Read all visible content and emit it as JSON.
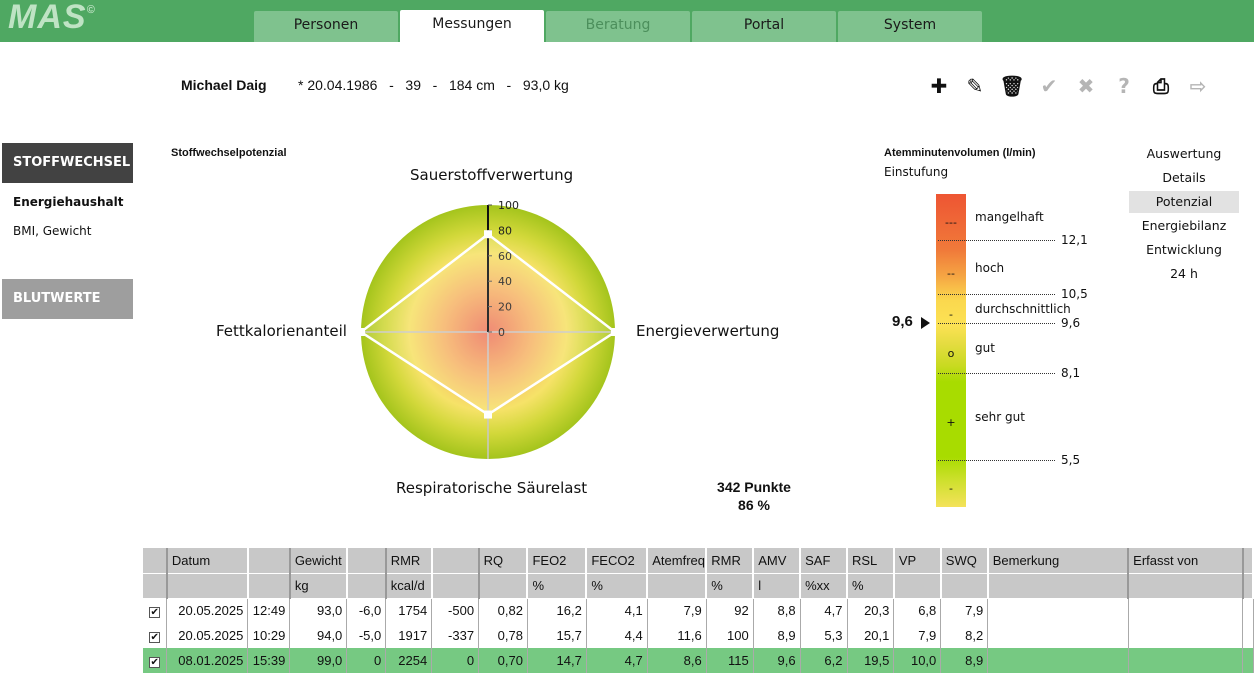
{
  "app": {
    "logo": "MAS"
  },
  "tabs": [
    {
      "label": "Personen",
      "state": "normal"
    },
    {
      "label": "Messungen",
      "state": "active"
    },
    {
      "label": "Beratung",
      "state": "disabled"
    },
    {
      "label": "Portal",
      "state": "normal"
    },
    {
      "label": "System",
      "state": "normal"
    }
  ],
  "person": {
    "name": "Michael Daig",
    "info": "* 20.04.1986   -   39   -   184 cm   -   93,0 kg"
  },
  "toolbar": [
    {
      "icon": "plus-icon",
      "glyph": "✚",
      "enabled": true
    },
    {
      "icon": "pencil-icon",
      "glyph": "✎",
      "enabled": true
    },
    {
      "icon": "trash-icon",
      "glyph": "🗑",
      "enabled": true
    },
    {
      "icon": "check-icon",
      "glyph": "✔",
      "enabled": false
    },
    {
      "icon": "close-icon",
      "glyph": "✖",
      "enabled": false
    },
    {
      "icon": "help-icon",
      "glyph": "?",
      "enabled": false
    },
    {
      "icon": "print-icon",
      "glyph": "⎙",
      "enabled": true
    },
    {
      "icon": "export-icon",
      "glyph": "⇨",
      "enabled": false
    }
  ],
  "sidebar": {
    "section1": "STOFFWECHSEL",
    "items": [
      "Energiehaushalt",
      "BMI, Gewicht"
    ],
    "section2": "BLUTWERTE"
  },
  "sublinks": [
    {
      "label": "Auswertung"
    },
    {
      "label": "Details"
    },
    {
      "label": "Potenzial",
      "active": true
    },
    {
      "label": "Energiebilanz"
    },
    {
      "label": "Entwicklung"
    },
    {
      "label": "24 h"
    }
  ],
  "radar": {
    "title": "Stoffwechselpotenzial",
    "axes": [
      "Sauerstoffverwertung",
      "Energieverwertung",
      "Respiratorische Säurelast",
      "Fettkalorienanteil"
    ],
    "values": [
      77,
      100,
      65,
      100
    ],
    "ticks": [
      "0",
      "20",
      "40",
      "60",
      "80",
      "100"
    ],
    "range": [
      0,
      100
    ],
    "score": "342 Punkte",
    "percent": "86 %"
  },
  "gauge": {
    "title": "Atemminutenvolumen (l/min)",
    "subtitle": "Einstufung",
    "current": "9,6",
    "levels": [
      {
        "mark": "---",
        "label": "mangelhaft"
      },
      {
        "mark": "--",
        "label": "hoch"
      },
      {
        "mark": "-",
        "label": "durchschnittlich"
      },
      {
        "mark": "o",
        "label": "gut"
      },
      {
        "mark": "+",
        "label": "sehr gut"
      },
      {
        "mark": "-",
        "label": ""
      }
    ],
    "thresholds": [
      "12,1",
      "10,5",
      "9,6",
      "8,1",
      "5,5"
    ]
  },
  "table": {
    "headers": [
      "",
      "Datum",
      "",
      "Gewicht",
      "",
      "RMR",
      "",
      "RQ",
      "FEO2",
      "FECO2",
      "Atemfreq",
      "RMR",
      "AMV",
      "SAF",
      "RSL",
      "VP",
      "SWQ",
      "Bemerkung",
      "Erfasst von",
      ""
    ],
    "units": [
      "",
      "",
      "",
      "kg",
      "",
      "kcal/d",
      "",
      "",
      "%",
      "%",
      "",
      "%",
      "l",
      "%xx",
      "%",
      "",
      "",
      "",
      "",
      ""
    ],
    "rows": [
      {
        "checked": true,
        "selected": false,
        "cells": [
          "20.05.2025",
          "12:49",
          "93,0",
          "-6,0",
          "1754",
          "-500",
          "0,82",
          "16,2",
          "4,1",
          "7,9",
          "92",
          "8,8",
          "4,7",
          "20,3",
          "6,8",
          "7,9",
          "",
          "",
          ""
        ]
      },
      {
        "checked": true,
        "selected": false,
        "cells": [
          "20.05.2025",
          "10:29",
          "94,0",
          "-5,0",
          "1917",
          "-337",
          "0,78",
          "15,7",
          "4,4",
          "11,6",
          "100",
          "8,9",
          "5,3",
          "20,1",
          "7,9",
          "8,2",
          "",
          "",
          ""
        ]
      },
      {
        "checked": true,
        "selected": true,
        "cells": [
          "08.01.2025",
          "15:39",
          "99,0",
          "0",
          "2254",
          "0",
          "0,70",
          "14,7",
          "4,7",
          "8,6",
          "115",
          "9,6",
          "6,2",
          "19,5",
          "10,0",
          "8,9",
          "",
          "",
          ""
        ]
      }
    ]
  },
  "colors": {
    "brand": "#4fa862",
    "tab": "#7fc28e",
    "selected_row": "#76c982"
  }
}
